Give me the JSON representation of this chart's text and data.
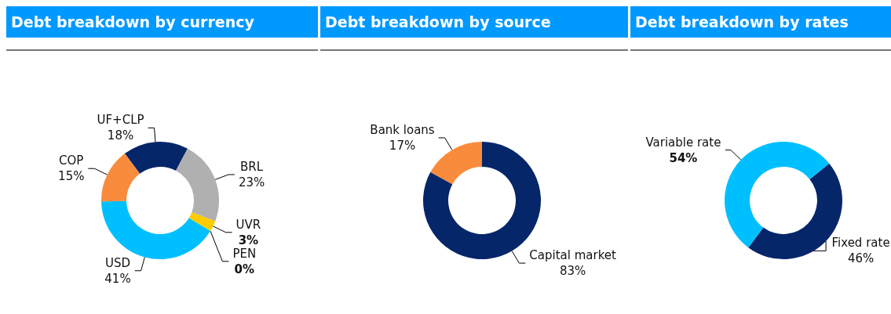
{
  "chart_data": [
    {
      "type": "donut",
      "title": "Debt breakdown by currency",
      "categories": [
        "UF+CLP",
        "BRL",
        "UVR",
        "PEN",
        "USD",
        "COP"
      ],
      "values": [
        18,
        23,
        3,
        0,
        41,
        15
      ],
      "value_labels": [
        "18%",
        "23%",
        "3%",
        "0%",
        "41%",
        "15%"
      ],
      "colors": [
        "#06266a",
        "#b0b0b0",
        "#ffcc00",
        "#70ad47",
        "#00bfff",
        "#f98c3c"
      ]
    },
    {
      "type": "donut",
      "title": "Debt breakdown by source",
      "categories": [
        "Capital market",
        "Bank loans"
      ],
      "values": [
        83,
        17
      ],
      "value_labels": [
        "83%",
        "17%"
      ],
      "colors": [
        "#06266a",
        "#f98c3c"
      ]
    },
    {
      "type": "donut",
      "title": "Debt breakdown by rates",
      "categories": [
        "Fixed rate",
        "Variable rate"
      ],
      "values": [
        46,
        54
      ],
      "value_labels": [
        "46%",
        "54%"
      ],
      "colors": [
        "#06266a",
        "#00bfff"
      ]
    }
  ]
}
